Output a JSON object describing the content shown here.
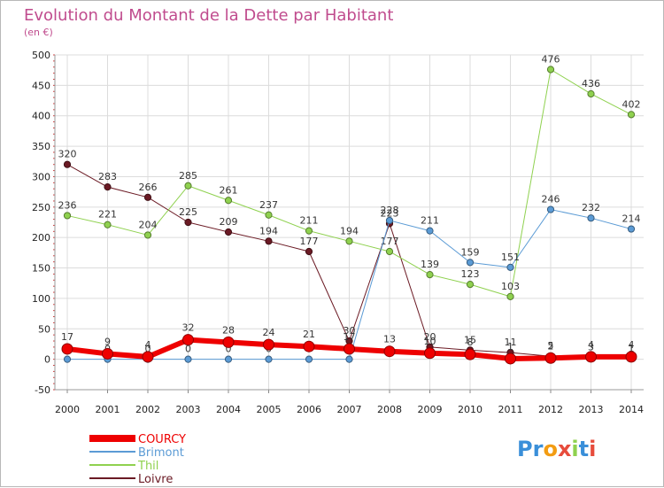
{
  "chart_data": {
    "type": "line",
    "title": "Evolution du Montant de la Dette par Habitant",
    "subtitle": "(en €)",
    "xlabel": "",
    "ylabel": "",
    "categories": [
      "2000",
      "2001",
      "2002",
      "2003",
      "2004",
      "2005",
      "2006",
      "2007",
      "2008",
      "2009",
      "2010",
      "2011",
      "2012",
      "2013",
      "2014"
    ],
    "ylim": [
      -50,
      500
    ],
    "yticks": [
      -50,
      0,
      50,
      100,
      150,
      200,
      250,
      300,
      350,
      400,
      450,
      500
    ],
    "ytick_labels": [
      "-50",
      "0",
      "50",
      "100",
      "150",
      "200",
      "250",
      "300",
      "350",
      "400",
      "450",
      "500"
    ],
    "grid": true,
    "legend_position": "bottom-left",
    "series": [
      {
        "name": "Loivre",
        "color": "#6b1a24",
        "line_width": 1,
        "values": [
          320,
          283,
          266,
          225,
          209,
          194,
          177,
          30,
          223,
          20,
          15,
          11,
          5,
          3,
          1
        ],
        "labels": [
          "320",
          "283",
          "266",
          "225",
          "209",
          "194",
          "177",
          "30",
          "223",
          "20",
          "15",
          "11",
          "5",
          "3",
          "1"
        ]
      },
      {
        "name": "Thil",
        "color": "#8fd14f",
        "line_width": 1,
        "values": [
          236,
          221,
          204,
          285,
          261,
          237,
          211,
          194,
          177,
          139,
          123,
          103,
          476,
          436,
          402
        ],
        "labels": [
          "236",
          "221",
          "204",
          "285",
          "261",
          "237",
          "211",
          "194",
          "177",
          "139",
          "123",
          "103",
          "476",
          "436",
          "402"
        ]
      },
      {
        "name": "Brimont",
        "color": "#5b9bd5",
        "line_width": 1,
        "values": [
          0,
          0,
          0,
          0,
          0,
          0,
          0,
          0,
          228,
          211,
          159,
          151,
          246,
          232,
          214
        ],
        "labels": [
          "0",
          "0",
          "0",
          "0",
          "0",
          "0",
          "0",
          "0",
          "228",
          "211",
          "159",
          "151",
          "246",
          "232",
          "214"
        ]
      },
      {
        "name": "COURCY",
        "color": "#ee0000",
        "line_width": 6,
        "values": [
          17,
          9,
          4,
          32,
          28,
          24,
          21,
          17,
          13,
          10,
          8,
          1,
          2,
          4,
          4
        ],
        "labels": [
          "17",
          "9",
          "4",
          "32",
          "28",
          "24",
          "21",
          "17",
          "13",
          "10",
          "8",
          "1",
          "2",
          "4",
          "4"
        ]
      }
    ]
  },
  "legend": {
    "items": [
      {
        "label": "COURCY",
        "color": "#ee0000"
      },
      {
        "label": "Brimont",
        "color": "#5b9bd5"
      },
      {
        "label": "Thil",
        "color": "#8fd14f"
      },
      {
        "label": "Loivre",
        "color": "#6b1a24"
      }
    ]
  },
  "branding": {
    "logo_text": "Proxiti",
    "letter_colors": [
      "#3a8fd9",
      "#3a8fd9",
      "#f39c12",
      "#e74c3c",
      "#8fd14f",
      "#3a8fd9",
      "#e74c3c"
    ]
  }
}
